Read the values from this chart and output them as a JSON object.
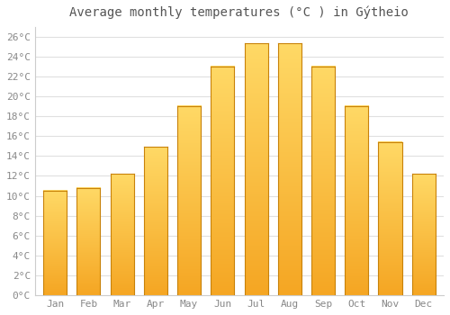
{
  "title": "Average monthly temperatures (°C ) in Gýtheio",
  "months": [
    "Jan",
    "Feb",
    "Mar",
    "Apr",
    "May",
    "Jun",
    "Jul",
    "Aug",
    "Sep",
    "Oct",
    "Nov",
    "Dec"
  ],
  "values": [
    10.5,
    10.8,
    12.2,
    14.9,
    19.0,
    23.0,
    25.3,
    25.3,
    23.0,
    19.0,
    15.4,
    12.2
  ],
  "bar_color_bottom": "#F5A623",
  "bar_color_top": "#FFD966",
  "bar_edge_color": "#C8820A",
  "ylim": [
    0,
    27
  ],
  "yticks": [
    0,
    2,
    4,
    6,
    8,
    10,
    12,
    14,
    16,
    18,
    20,
    22,
    24,
    26
  ],
  "ytick_labels": [
    "0°C",
    "2°C",
    "4°C",
    "6°C",
    "8°C",
    "10°C",
    "12°C",
    "14°C",
    "16°C",
    "18°C",
    "20°C",
    "22°C",
    "24°C",
    "26°C"
  ],
  "bg_color": "#ffffff",
  "grid_color": "#e0e0e0",
  "title_fontsize": 10,
  "tick_fontsize": 8,
  "font_family": "monospace",
  "tick_color": "#888888",
  "title_color": "#555555"
}
